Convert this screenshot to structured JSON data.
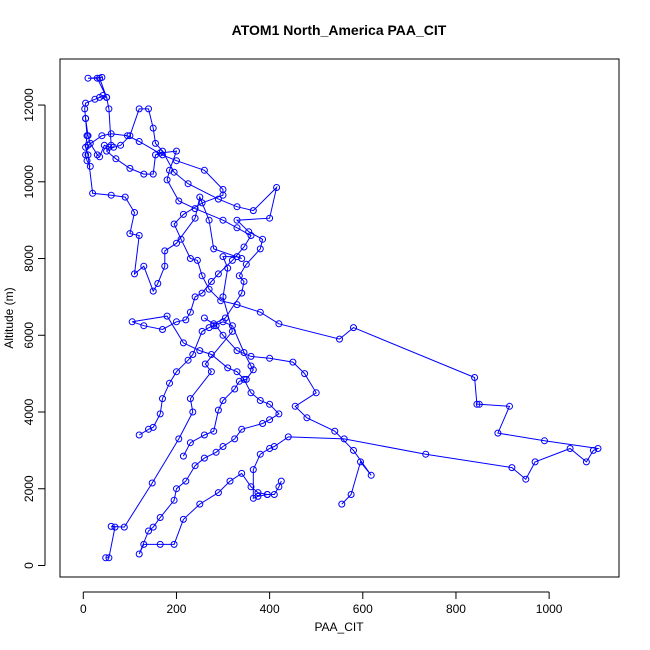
{
  "chart_data": {
    "type": "line",
    "title": "ATOM1 North_America PAA_CIT",
    "xlabel": "PAA_CIT",
    "ylabel": "Altitude (m)",
    "xlim": [
      -50,
      1150
    ],
    "ylim": [
      -300,
      13200
    ],
    "xticks": [
      0,
      200,
      400,
      600,
      800,
      1000
    ],
    "yticks": [
      0,
      2000,
      4000,
      6000,
      8000,
      10000,
      12000
    ],
    "color": "#0000ff",
    "marker": "open-circle",
    "grid": false,
    "series": [
      {
        "name": "",
        "points": [
          [
            48,
            200
          ],
          [
            55,
            200
          ],
          [
            68,
            1000
          ],
          [
            60,
            1020
          ],
          [
            88,
            1000
          ],
          [
            148,
            2150
          ],
          [
            205,
            3300
          ],
          [
            235,
            4000
          ],
          [
            230,
            4350
          ],
          [
            275,
            5050
          ],
          [
            262,
            5250
          ],
          [
            320,
            6100
          ],
          [
            300,
            7000
          ],
          [
            310,
            7750
          ],
          [
            300,
            8050
          ],
          [
            330,
            8050
          ],
          [
            340,
            8000
          ],
          [
            280,
            8250
          ],
          [
            270,
            9000
          ],
          [
            250,
            9600
          ],
          [
            240,
            9050
          ],
          [
            200,
            8400
          ],
          [
            175,
            8200
          ],
          [
            175,
            7800
          ],
          [
            160,
            7350
          ],
          [
            150,
            7150
          ],
          [
            130,
            7800
          ],
          [
            110,
            7600
          ],
          [
            120,
            8600
          ],
          [
            100,
            8650
          ],
          [
            110,
            9200
          ],
          [
            90,
            9600
          ],
          [
            60,
            9650
          ],
          [
            20,
            9700
          ],
          [
            10,
            10700
          ],
          [
            5,
            10900
          ],
          [
            8,
            11200
          ],
          [
            5,
            11650
          ],
          [
            3,
            11900
          ],
          [
            5,
            12050
          ],
          [
            25,
            12150
          ],
          [
            35,
            12200
          ],
          [
            42,
            12250
          ],
          [
            50,
            12200
          ],
          [
            30,
            12700
          ],
          [
            10,
            12700
          ],
          [
            40,
            12720
          ],
          [
            35,
            12700
          ],
          [
            50,
            12200
          ],
          [
            55,
            11900
          ],
          [
            60,
            10950
          ],
          [
            50,
            10800
          ],
          [
            70,
            10600
          ],
          [
            100,
            10350
          ],
          [
            130,
            10200
          ],
          [
            150,
            10200
          ],
          [
            155,
            10700
          ],
          [
            165,
            10750
          ],
          [
            200,
            10800
          ],
          [
            185,
            10300
          ],
          [
            180,
            10050
          ],
          [
            205,
            9500
          ],
          [
            240,
            9300
          ],
          [
            300,
            9000
          ],
          [
            330,
            8800
          ],
          [
            360,
            8600
          ],
          [
            345,
            8300
          ],
          [
            320,
            7950
          ],
          [
            290,
            7600
          ],
          [
            275,
            7400
          ],
          [
            255,
            7100
          ],
          [
            240,
            7000
          ],
          [
            230,
            6600
          ],
          [
            220,
            6400
          ],
          [
            200,
            6350
          ],
          [
            170,
            6150
          ],
          [
            130,
            6250
          ],
          [
            105,
            6350
          ],
          [
            180,
            6500
          ],
          [
            215,
            5800
          ],
          [
            250,
            5600
          ],
          [
            275,
            5500
          ],
          [
            310,
            5150
          ],
          [
            330,
            5050
          ],
          [
            345,
            4850
          ],
          [
            360,
            4500
          ],
          [
            380,
            4300
          ],
          [
            400,
            4200
          ],
          [
            420,
            3950
          ],
          [
            400,
            3800
          ],
          [
            385,
            3700
          ],
          [
            340,
            3550
          ],
          [
            325,
            3300
          ],
          [
            300,
            3100
          ],
          [
            285,
            2950
          ],
          [
            260,
            2800
          ],
          [
            240,
            2600
          ],
          [
            220,
            2200
          ],
          [
            200,
            2000
          ],
          [
            195,
            1700
          ],
          [
            165,
            1250
          ],
          [
            150,
            1000
          ],
          [
            140,
            900
          ],
          [
            120,
            300
          ],
          [
            130,
            550
          ],
          [
            165,
            550
          ],
          [
            195,
            550
          ],
          [
            215,
            1200
          ],
          [
            250,
            1600
          ],
          [
            290,
            1900
          ],
          [
            315,
            2200
          ],
          [
            340,
            2400
          ],
          [
            360,
            2050
          ],
          [
            375,
            1900
          ],
          [
            395,
            1850
          ],
          [
            410,
            1850
          ],
          [
            420,
            2050
          ],
          [
            425,
            2200
          ]
        ]
      },
      {
        "name": "",
        "points": [
          [
            395,
            1850
          ],
          [
            375,
            1800
          ],
          [
            365,
            1750
          ],
          [
            365,
            2500
          ],
          [
            380,
            2900
          ],
          [
            400,
            3050
          ],
          [
            410,
            3100
          ],
          [
            440,
            3350
          ],
          [
            560,
            3300
          ],
          [
            735,
            2900
          ],
          [
            920,
            2550
          ],
          [
            950,
            2250
          ],
          [
            970,
            2700
          ],
          [
            1045,
            3050
          ],
          [
            1080,
            2700
          ],
          [
            1095,
            3000
          ],
          [
            1105,
            3050
          ],
          [
            990,
            3250
          ],
          [
            890,
            3450
          ],
          [
            915,
            4150
          ],
          [
            850,
            4200
          ],
          [
            845,
            4200
          ],
          [
            840,
            4900
          ],
          [
            580,
            6200
          ],
          [
            550,
            5900
          ],
          [
            420,
            6300
          ],
          [
            380,
            6600
          ],
          [
            330,
            6800
          ],
          [
            295,
            6900
          ],
          [
            270,
            7200
          ],
          [
            255,
            7550
          ],
          [
            245,
            7950
          ],
          [
            230,
            8000
          ],
          [
            210,
            8500
          ],
          [
            195,
            8900
          ],
          [
            215,
            9150
          ],
          [
            255,
            9450
          ],
          [
            300,
            9650
          ],
          [
            300,
            9800
          ],
          [
            260,
            10300
          ],
          [
            200,
            10550
          ],
          [
            170,
            10700
          ],
          [
            120,
            11050
          ],
          [
            95,
            11200
          ],
          [
            60,
            11250
          ],
          [
            40,
            11200
          ],
          [
            10,
            10950
          ],
          [
            5,
            10700
          ],
          [
            8,
            10550
          ],
          [
            15,
            10400
          ]
        ]
      },
      {
        "name": "",
        "points": [
          [
            555,
            1600
          ],
          [
            575,
            1850
          ],
          [
            595,
            2700
          ],
          [
            618,
            2350
          ],
          [
            580,
            3000
          ],
          [
            540,
            3500
          ],
          [
            480,
            3850
          ],
          [
            455,
            4150
          ],
          [
            500,
            4500
          ],
          [
            475,
            5000
          ],
          [
            450,
            5300
          ],
          [
            400,
            5400
          ],
          [
            360,
            5450
          ],
          [
            330,
            5600
          ],
          [
            300,
            6000
          ],
          [
            285,
            6250
          ],
          [
            260,
            6450
          ],
          [
            280,
            6300
          ],
          [
            305,
            6450
          ],
          [
            340,
            7100
          ],
          [
            345,
            7400
          ],
          [
            335,
            7550
          ],
          [
            350,
            7850
          ],
          [
            380,
            8250
          ],
          [
            385,
            8500
          ],
          [
            355,
            8700
          ],
          [
            330,
            9000
          ],
          [
            400,
            9050
          ],
          [
            415,
            9850
          ],
          [
            365,
            9250
          ],
          [
            330,
            9350
          ],
          [
            290,
            9550
          ],
          [
            225,
            9950
          ],
          [
            195,
            10250
          ],
          [
            170,
            10800
          ],
          [
            155,
            11000
          ],
          [
            150,
            11400
          ],
          [
            140,
            11900
          ],
          [
            120,
            11900
          ],
          [
            100,
            11200
          ],
          [
            80,
            10950
          ],
          [
            65,
            10900
          ],
          [
            55,
            10900
          ],
          [
            45,
            10950
          ],
          [
            35,
            10650
          ],
          [
            30,
            10700
          ],
          [
            15,
            11000
          ],
          [
            10,
            11200
          ],
          [
            5,
            11650
          ]
        ]
      },
      {
        "name": "",
        "points": [
          [
            215,
            2850
          ],
          [
            230,
            3200
          ],
          [
            260,
            3400
          ],
          [
            280,
            3500
          ],
          [
            290,
            4050
          ],
          [
            300,
            4300
          ],
          [
            325,
            4600
          ],
          [
            335,
            4800
          ],
          [
            350,
            4850
          ],
          [
            365,
            5100
          ],
          [
            360,
            5200
          ],
          [
            345,
            5550
          ],
          [
            320,
            6250
          ],
          [
            300,
            6350
          ],
          [
            280,
            6250
          ],
          [
            270,
            6200
          ],
          [
            255,
            6100
          ],
          [
            235,
            5500
          ],
          [
            225,
            5350
          ],
          [
            200,
            5050
          ],
          [
            185,
            4750
          ],
          [
            170,
            4350
          ],
          [
            165,
            3950
          ],
          [
            150,
            3600
          ],
          [
            140,
            3550
          ],
          [
            120,
            3400
          ]
        ]
      }
    ]
  }
}
